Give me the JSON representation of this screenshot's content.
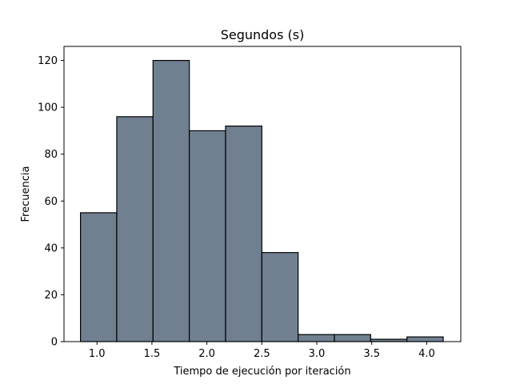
{
  "chart_data": {
    "type": "bar",
    "title": "Segundos (s)",
    "xlabel": "Tiempo de ejecución por iteración",
    "ylabel": "Frecuencia",
    "xlim": [
      0.7,
      4.31
    ],
    "ylim": [
      0,
      126
    ],
    "bin_edges": [
      0.85,
      1.18,
      1.51,
      1.84,
      2.17,
      2.5,
      2.83,
      3.16,
      3.49,
      3.82,
      4.15
    ],
    "values": [
      55,
      96,
      120,
      90,
      92,
      38,
      3,
      3,
      1,
      2
    ],
    "xticks": [
      1.0,
      1.5,
      2.0,
      2.5,
      3.0,
      3.5,
      4.0
    ],
    "xtick_labels": [
      "1.0",
      "1.5",
      "2.0",
      "2.5",
      "3.0",
      "3.5",
      "4.0"
    ],
    "yticks": [
      0,
      20,
      40,
      60,
      80,
      100,
      120
    ],
    "ytick_labels": [
      "0",
      "20",
      "40",
      "60",
      "80",
      "100",
      "120"
    ],
    "grid": false,
    "bar_color": "#708090",
    "edge_color": "#000000"
  }
}
